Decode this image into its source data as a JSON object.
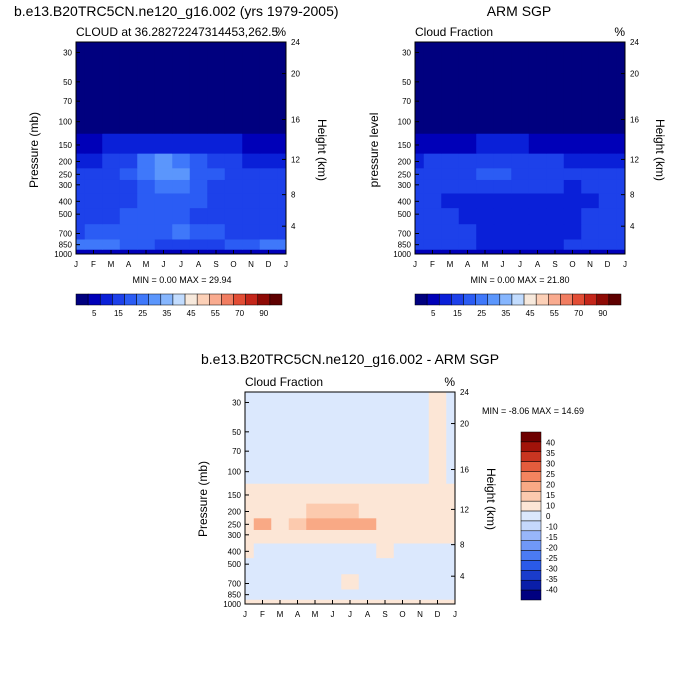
{
  "figure": {
    "colors": {
      "bg": "#ffffff",
      "axis": "#000000",
      "abs_scale": [
        "#00007f",
        "#0000b8",
        "#0a20d8",
        "#1d41ea",
        "#2b5cf4",
        "#3f78fa",
        "#5b96fc",
        "#86b6fe",
        "#c2dcfe",
        "#f7e9dc",
        "#fcd0b7",
        "#f9ab8f",
        "#f17d61",
        "#e24d35",
        "#c4261a",
        "#8e0a05",
        "#5e0000"
      ],
      "diff_scale": [
        "#000080",
        "#0a1ea8",
        "#1a3ccc",
        "#2a5ae8",
        "#4b7bf3",
        "#7098f7",
        "#98b6fa",
        "#c5d8fc",
        "#dbe8fd",
        "#fce6d6",
        "#fccaae",
        "#f9a985",
        "#f3845f",
        "#e45c3d",
        "#c93521",
        "#a1130a",
        "#6e0000"
      ]
    }
  },
  "chart_data": [
    {
      "type": "heatmap",
      "id": "panel-model",
      "title": "b.e13.B20TRC5CN.ne120_g16.002 (yrs 1979-2005)",
      "subtitle_left": "CLOUD at 36.28272247314453,262.5",
      "subtitle_right": "%",
      "ylabel": "Pressure (mb)",
      "ylabel_right": "Height (km)",
      "x_ticks": [
        "J",
        "F",
        "M",
        "A",
        "M",
        "J",
        "J",
        "A",
        "S",
        "O",
        "N",
        "D",
        "J"
      ],
      "y_ticks": [
        30,
        50,
        70,
        100,
        150,
        200,
        250,
        300,
        400,
        500,
        700,
        850,
        1000
      ],
      "ylim": [
        25,
        1000
      ],
      "height_ticks": [
        24,
        20,
        16,
        12,
        8,
        4
      ],
      "stats": "MIN =   0.00 MAX = 29.94",
      "colorbar_labels": [
        "5",
        "15",
        "25",
        "35",
        "45",
        "55",
        "70",
        "90"
      ],
      "colorbar_levels": [
        2.5,
        5,
        10,
        15,
        20,
        25,
        30,
        35,
        40,
        45,
        50,
        55,
        60,
        70,
        80,
        90
      ],
      "monthly_pressure_mb": [
        1000,
        850,
        700,
        500,
        400,
        300,
        250,
        200,
        150,
        100
      ],
      "values": [
        [
          4,
          4,
          3,
          3,
          3,
          3,
          3,
          3,
          3,
          3,
          4,
          4,
          4
        ],
        [
          22,
          21,
          20,
          18,
          16,
          14,
          13,
          13,
          14,
          16,
          19,
          21,
          22
        ],
        [
          14,
          15,
          15,
          16,
          17,
          19,
          20,
          18,
          16,
          14,
          14,
          14,
          14
        ],
        [
          12,
          13,
          14,
          15,
          16,
          16,
          15,
          14,
          13,
          12,
          12,
          12,
          12
        ],
        [
          11,
          12,
          13,
          14,
          16,
          17,
          16,
          15,
          13,
          12,
          11,
          11,
          11
        ],
        [
          10,
          11,
          12,
          14,
          17,
          21,
          20,
          17,
          14,
          12,
          11,
          10,
          10
        ],
        [
          10,
          11,
          13,
          17,
          23,
          27,
          25,
          19,
          15,
          12,
          11,
          10,
          10
        ],
        [
          8,
          9,
          11,
          14,
          20,
          26,
          24,
          17,
          13,
          10,
          9,
          8,
          8
        ],
        [
          4,
          4,
          5,
          6,
          8,
          9,
          9,
          7,
          6,
          5,
          4,
          4,
          4
        ],
        [
          1,
          1,
          1,
          1,
          1,
          1,
          1,
          1,
          1,
          1,
          1,
          1,
          1
        ]
      ]
    },
    {
      "type": "heatmap",
      "id": "panel-obs",
      "title": "ARM SGP",
      "subtitle_left": "Cloud Fraction",
      "subtitle_right": "%",
      "ylabel": "pressure level",
      "ylabel_right": "Height (km)",
      "x_ticks": [
        "J",
        "F",
        "M",
        "A",
        "M",
        "J",
        "J",
        "A",
        "S",
        "O",
        "N",
        "D",
        "J"
      ],
      "y_ticks": [
        30,
        50,
        70,
        100,
        150,
        200,
        250,
        300,
        400,
        500,
        700,
        850,
        1000
      ],
      "ylim": [
        25,
        1000
      ],
      "height_ticks": [
        24,
        20,
        16,
        12,
        8,
        4
      ],
      "stats": "MIN =   0.00 MAX = 21.80",
      "colorbar_labels": [
        "5",
        "15",
        "25",
        "35",
        "45",
        "55",
        "70",
        "90"
      ],
      "colorbar_levels": [
        2.5,
        5,
        10,
        15,
        20,
        25,
        30,
        35,
        40,
        45,
        50,
        55,
        60,
        70,
        80,
        90
      ],
      "monthly_pressure_mb": [
        1000,
        850,
        700,
        500,
        400,
        300,
        250,
        200,
        150,
        100
      ],
      "values": [
        [
          3,
          3,
          3,
          3,
          3,
          3,
          3,
          3,
          3,
          3,
          3,
          3,
          3
        ],
        [
          14,
          13,
          12,
          10,
          9,
          9,
          9,
          9,
          9,
          10,
          12,
          13,
          14
        ],
        [
          13,
          12,
          11,
          10,
          9,
          8,
          8,
          8,
          9,
          9,
          11,
          12,
          13
        ],
        [
          12,
          11,
          10,
          9,
          8,
          8,
          8,
          8,
          8,
          8,
          10,
          11,
          12
        ],
        [
          11,
          10,
          9,
          9,
          8,
          8,
          8,
          8,
          8,
          8,
          9,
          10,
          11
        ],
        [
          11,
          11,
          11,
          12,
          13,
          13,
          12,
          11,
          10,
          9,
          10,
          11,
          11
        ],
        [
          11,
          12,
          13,
          14,
          15,
          15,
          14,
          13,
          12,
          11,
          11,
          11,
          11
        ],
        [
          9,
          10,
          11,
          12,
          12,
          12,
          11,
          10,
          10,
          9,
          9,
          9,
          9
        ],
        [
          3,
          3,
          4,
          4,
          5,
          5,
          5,
          4,
          4,
          3,
          3,
          3,
          3
        ],
        [
          1,
          1,
          1,
          1,
          1,
          1,
          1,
          1,
          1,
          1,
          1,
          1,
          1
        ]
      ]
    },
    {
      "type": "heatmap",
      "id": "panel-diff",
      "title": "b.e13.B20TRC5CN.ne120_g16.002 - ARM SGP",
      "subtitle_left": "Cloud Fraction",
      "subtitle_right": "%",
      "ylabel": "Pressure (mb)",
      "ylabel_right": "Height (km)",
      "x_ticks": [
        "J",
        "F",
        "M",
        "A",
        "M",
        "J",
        "J",
        "A",
        "S",
        "O",
        "N",
        "D",
        "J"
      ],
      "y_ticks": [
        30,
        50,
        70,
        100,
        150,
        200,
        250,
        300,
        400,
        500,
        700,
        850,
        1000
      ],
      "ylim": [
        25,
        1000
      ],
      "height_ticks": [
        24,
        20,
        16,
        12,
        8,
        4
      ],
      "stats": "MIN = -8.06 MAX = 14.69",
      "colorbar_labels": [
        "40",
        "35",
        "30",
        "25",
        "20",
        "15",
        "10",
        "0",
        "-10",
        "-15",
        "-20",
        "-25",
        "-30",
        "-35",
        "-40"
      ],
      "colorbar_levels": [
        -40,
        -35,
        -30,
        -25,
        -20,
        -15,
        -10,
        -5,
        0,
        5,
        10,
        15,
        20,
        25,
        30,
        35,
        40
      ],
      "monthly_pressure_mb": [
        1000,
        850,
        700,
        500,
        400,
        300,
        250,
        200,
        150,
        100
      ],
      "values": [
        [
          1,
          1,
          0,
          0,
          0,
          0,
          0,
          0,
          0,
          0,
          1,
          1,
          1
        ],
        [
          -3,
          -2,
          -2,
          -2,
          -2,
          -3,
          -2,
          -2,
          -2,
          -2,
          -2,
          -3,
          -3
        ],
        [
          -2,
          -2,
          -2,
          -2,
          -2,
          -2,
          4,
          -2,
          -2,
          -2,
          -2,
          -2,
          -2
        ],
        [
          -2,
          -2,
          -2,
          -2,
          -2,
          -2,
          -2,
          -2,
          -2,
          -2,
          -2,
          -2,
          -2
        ],
        [
          1,
          -2,
          -2,
          -2,
          -2,
          -2,
          -2,
          -2,
          1,
          -2,
          -2,
          -2,
          -2
        ],
        [
          1,
          1,
          2,
          2,
          2,
          3,
          3,
          3,
          2,
          2,
          1,
          1,
          1
        ],
        [
          2,
          12,
          3,
          5,
          12,
          13,
          12,
          11,
          3,
          3,
          2,
          2,
          2
        ],
        [
          2,
          3,
          3,
          4,
          6,
          7,
          6,
          4,
          3,
          3,
          2,
          2,
          2
        ],
        [
          1,
          1,
          1,
          1,
          1,
          2,
          2,
          1,
          1,
          1,
          1,
          1,
          1
        ],
        [
          -2,
          -2,
          -2,
          -2,
          -2,
          -2,
          -2,
          -2,
          -2,
          -2,
          -2,
          3,
          -2
        ]
      ]
    }
  ]
}
